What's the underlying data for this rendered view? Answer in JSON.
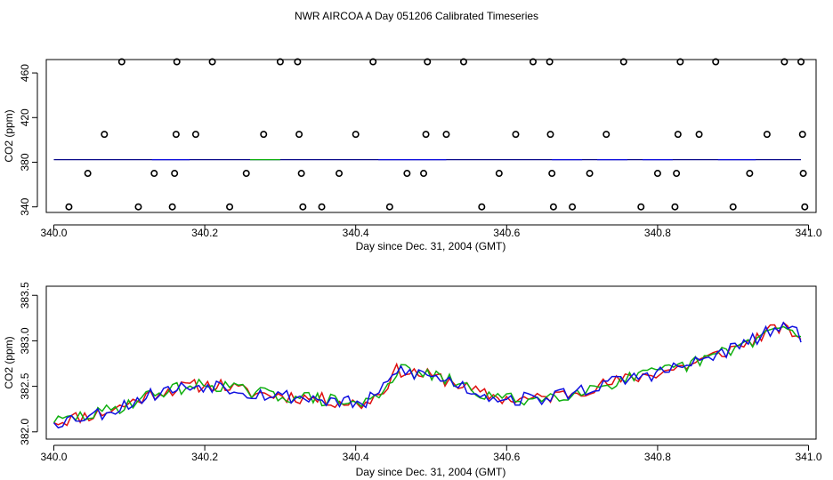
{
  "page": {
    "title": "NWR AIRCOA A  Day 051206  Calibrated Timeseries"
  },
  "colors": {
    "red": "#e01010",
    "green": "#10b010",
    "blue": "#1010e0",
    "black": "#000000"
  },
  "chart_data": [
    {
      "type": "scatter",
      "title": "",
      "xlabel": "Day since Dec. 31, 2004 (GMT)",
      "ylabel": "CO2 (ppm)",
      "xlim": [
        339.99,
        341.01
      ],
      "ylim": [
        335,
        472
      ],
      "xticks": [
        340.0,
        340.2,
        340.4,
        340.6,
        340.8,
        341.0
      ],
      "xtick_labels": [
        "340.0",
        "340.2",
        "340.4",
        "340.6",
        "340.8",
        "341.0"
      ],
      "yticks": [
        340,
        380,
        420,
        460
      ],
      "ytick_labels": [
        "340",
        "380",
        "420",
        "460"
      ],
      "baseline": {
        "x0": 340.0,
        "x1": 340.99,
        "y": 382.3
      },
      "points": [
        {
          "x": 340.02,
          "y": 340
        },
        {
          "x": 340.045,
          "y": 370
        },
        {
          "x": 340.067,
          "y": 405
        },
        {
          "x": 340.09,
          "y": 470
        },
        {
          "x": 340.112,
          "y": 340
        },
        {
          "x": 340.133,
          "y": 370
        },
        {
          "x": 340.157,
          "y": 340
        },
        {
          "x": 340.16,
          "y": 370
        },
        {
          "x": 340.162,
          "y": 405
        },
        {
          "x": 340.163,
          "y": 470
        },
        {
          "x": 340.188,
          "y": 405
        },
        {
          "x": 340.21,
          "y": 470
        },
        {
          "x": 340.233,
          "y": 340
        },
        {
          "x": 340.255,
          "y": 370
        },
        {
          "x": 340.278,
          "y": 405
        },
        {
          "x": 340.3,
          "y": 470
        },
        {
          "x": 340.323,
          "y": 470
        },
        {
          "x": 340.325,
          "y": 405
        },
        {
          "x": 340.328,
          "y": 370
        },
        {
          "x": 340.33,
          "y": 340
        },
        {
          "x": 340.355,
          "y": 340
        },
        {
          "x": 340.378,
          "y": 370
        },
        {
          "x": 340.4,
          "y": 405
        },
        {
          "x": 340.423,
          "y": 470
        },
        {
          "x": 340.445,
          "y": 340
        },
        {
          "x": 340.468,
          "y": 370
        },
        {
          "x": 340.49,
          "y": 370
        },
        {
          "x": 340.493,
          "y": 405
        },
        {
          "x": 340.495,
          "y": 470
        },
        {
          "x": 340.52,
          "y": 405
        },
        {
          "x": 340.543,
          "y": 470
        },
        {
          "x": 340.567,
          "y": 340
        },
        {
          "x": 340.59,
          "y": 370
        },
        {
          "x": 340.612,
          "y": 405
        },
        {
          "x": 340.635,
          "y": 470
        },
        {
          "x": 340.657,
          "y": 470
        },
        {
          "x": 340.658,
          "y": 405
        },
        {
          "x": 340.66,
          "y": 370
        },
        {
          "x": 340.662,
          "y": 340
        },
        {
          "x": 340.687,
          "y": 340
        },
        {
          "x": 340.71,
          "y": 370
        },
        {
          "x": 340.732,
          "y": 405
        },
        {
          "x": 340.755,
          "y": 470
        },
        {
          "x": 340.778,
          "y": 340
        },
        {
          "x": 340.8,
          "y": 370
        },
        {
          "x": 340.823,
          "y": 340
        },
        {
          "x": 340.825,
          "y": 370
        },
        {
          "x": 340.827,
          "y": 405
        },
        {
          "x": 340.83,
          "y": 470
        },
        {
          "x": 340.855,
          "y": 405
        },
        {
          "x": 340.877,
          "y": 470
        },
        {
          "x": 340.9,
          "y": 340
        },
        {
          "x": 340.922,
          "y": 370
        },
        {
          "x": 340.945,
          "y": 405
        },
        {
          "x": 340.968,
          "y": 470
        },
        {
          "x": 340.99,
          "y": 470
        },
        {
          "x": 340.992,
          "y": 405
        },
        {
          "x": 340.993,
          "y": 370
        },
        {
          "x": 340.995,
          "y": 340
        }
      ]
    },
    {
      "type": "line",
      "title": "",
      "xlabel": "Day since Dec. 31, 2004 (GMT)",
      "ylabel": "CO2 (ppm)",
      "xlim": [
        339.99,
        341.01
      ],
      "ylim": [
        381.92,
        383.6
      ],
      "xticks": [
        340.0,
        340.2,
        340.4,
        340.6,
        340.8,
        341.0
      ],
      "xtick_labels": [
        "340.0",
        "340.2",
        "340.4",
        "340.6",
        "340.8",
        "341.0"
      ],
      "yticks": [
        382.0,
        382.5,
        383.0,
        383.5
      ],
      "ytick_labels": [
        "382.0",
        "382.5",
        "383.0",
        "383.5"
      ],
      "keyframes": [
        {
          "x": 340.0,
          "y": 382.1
        },
        {
          "x": 340.03,
          "y": 382.16
        },
        {
          "x": 340.06,
          "y": 382.2
        },
        {
          "x": 340.09,
          "y": 382.28
        },
        {
          "x": 340.11,
          "y": 382.35
        },
        {
          "x": 340.14,
          "y": 382.44
        },
        {
          "x": 340.18,
          "y": 382.5
        },
        {
          "x": 340.22,
          "y": 382.52
        },
        {
          "x": 340.26,
          "y": 382.43
        },
        {
          "x": 340.3,
          "y": 382.4
        },
        {
          "x": 340.34,
          "y": 382.37
        },
        {
          "x": 340.38,
          "y": 382.33
        },
        {
          "x": 340.41,
          "y": 382.3
        },
        {
          "x": 340.435,
          "y": 382.45
        },
        {
          "x": 340.455,
          "y": 382.68
        },
        {
          "x": 340.49,
          "y": 382.63
        },
        {
          "x": 340.53,
          "y": 382.55
        },
        {
          "x": 340.56,
          "y": 382.43
        },
        {
          "x": 340.6,
          "y": 382.36
        },
        {
          "x": 340.64,
          "y": 382.36
        },
        {
          "x": 340.68,
          "y": 382.42
        },
        {
          "x": 340.72,
          "y": 382.5
        },
        {
          "x": 340.76,
          "y": 382.58
        },
        {
          "x": 340.8,
          "y": 382.65
        },
        {
          "x": 340.84,
          "y": 382.73
        },
        {
          "x": 340.88,
          "y": 382.85
        },
        {
          "x": 340.92,
          "y": 382.98
        },
        {
          "x": 340.96,
          "y": 383.15
        },
        {
          "x": 340.99,
          "y": 383.05
        }
      ],
      "series": [
        {
          "name": "red",
          "color": "#e01010",
          "seed": 11,
          "amp": 0.075
        },
        {
          "name": "green",
          "color": "#10b010",
          "seed": 29,
          "amp": 0.075
        },
        {
          "name": "blue",
          "color": "#1010e0",
          "seed": 53,
          "amp": 0.08
        }
      ]
    }
  ]
}
